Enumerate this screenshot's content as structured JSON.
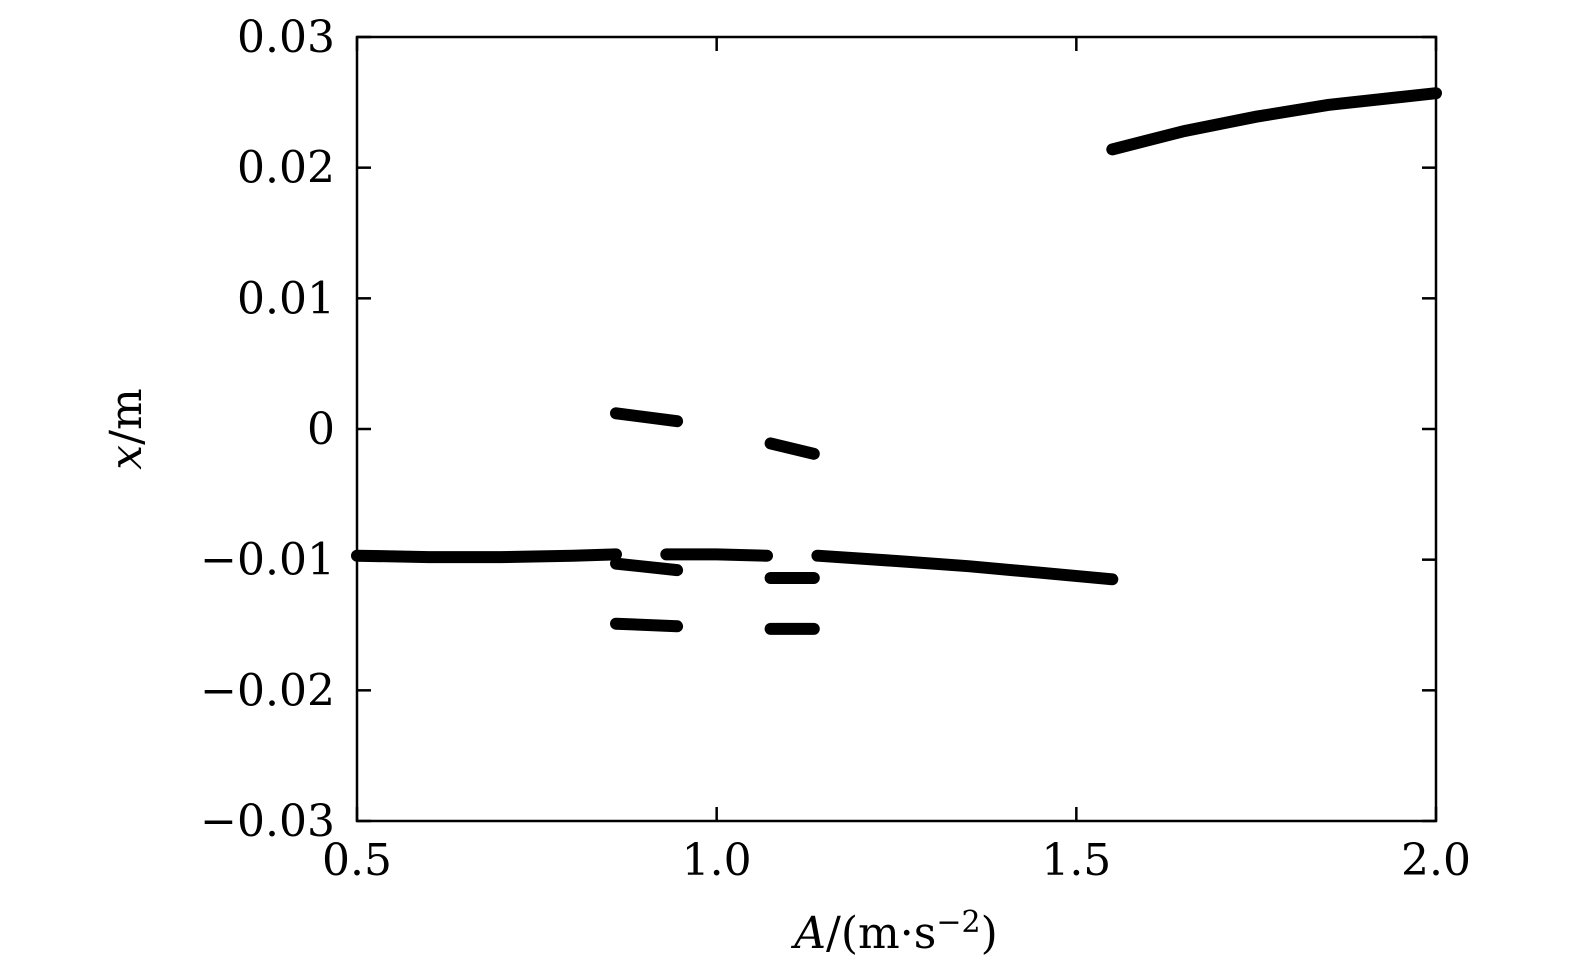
{
  "chart_data": {
    "type": "scatter",
    "title": "",
    "xlabel": {
      "var": "A",
      "unit": "/(m·s",
      "exp": "−2",
      "close": ")"
    },
    "ylabel": {
      "var": "x",
      "unit": "/m"
    },
    "xlim": [
      0.5,
      2.0
    ],
    "ylim": [
      -0.03,
      0.03
    ],
    "xticks": [
      0.5,
      1.0,
      1.5,
      2.0
    ],
    "xtick_labels": [
      "0.5",
      "1.0",
      "1.5",
      "2.0"
    ],
    "yticks": [
      0.03,
      0.02,
      0.01,
      0,
      -0.01,
      -0.02,
      -0.03
    ],
    "ytick_labels": [
      "0.03",
      "0.02",
      "0.01",
      "0",
      "−0.01",
      "−0.02",
      "−0.03"
    ],
    "grid": false,
    "legend": "none",
    "marker_color": "#000000",
    "series": [
      {
        "points": [
          [
            0.5,
            -0.0097
          ],
          [
            0.6,
            -0.0098
          ],
          [
            0.7,
            -0.0098
          ],
          [
            0.8,
            -0.0097
          ],
          [
            0.86,
            -0.0096
          ]
        ]
      },
      {
        "points": [
          [
            0.86,
            0.0012
          ],
          [
            0.945,
            0.0006
          ]
        ]
      },
      {
        "points": [
          [
            0.86,
            -0.0103
          ],
          [
            0.945,
            -0.0108
          ]
        ]
      },
      {
        "points": [
          [
            0.86,
            -0.0149
          ],
          [
            0.945,
            -0.0151
          ]
        ]
      },
      {
        "points": [
          [
            0.93,
            -0.0096
          ],
          [
            1.0,
            -0.0096
          ],
          [
            1.07,
            -0.0097
          ]
        ]
      },
      {
        "points": [
          [
            1.075,
            -0.0011
          ],
          [
            1.135,
            -0.0019
          ]
        ]
      },
      {
        "points": [
          [
            1.075,
            -0.0114
          ],
          [
            1.135,
            -0.0114
          ]
        ]
      },
      {
        "points": [
          [
            1.075,
            -0.0153
          ],
          [
            1.135,
            -0.0153
          ]
        ]
      },
      {
        "points": [
          [
            1.14,
            -0.0097
          ],
          [
            1.25,
            -0.0101
          ],
          [
            1.35,
            -0.0105
          ],
          [
            1.45,
            -0.011
          ],
          [
            1.55,
            -0.0115
          ]
        ]
      },
      {
        "points": [
          [
            1.55,
            0.0214
          ],
          [
            1.65,
            0.0228
          ],
          [
            1.75,
            0.0239
          ],
          [
            1.85,
            0.0248
          ],
          [
            2.0,
            0.0257
          ]
        ]
      }
    ]
  }
}
